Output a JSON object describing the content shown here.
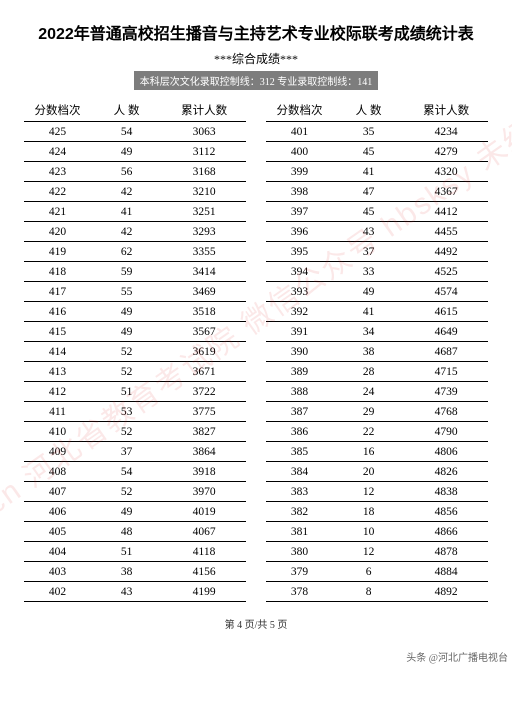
{
  "title": "2022年普通高校招生播音与主持艺术专业校际联考成绩统计表",
  "subtitle": "***综合成绩***",
  "scoreline": "本科层次文化录取控制线：312 专业录取控制线：141",
  "headers": {
    "col1": "分数档次",
    "col2": "人 数",
    "col3": "累计人数"
  },
  "left_rows": [
    {
      "s": "425",
      "c": "54",
      "t": "3063"
    },
    {
      "s": "424",
      "c": "49",
      "t": "3112"
    },
    {
      "s": "423",
      "c": "56",
      "t": "3168"
    },
    {
      "s": "422",
      "c": "42",
      "t": "3210"
    },
    {
      "s": "421",
      "c": "41",
      "t": "3251"
    },
    {
      "s": "420",
      "c": "42",
      "t": "3293"
    },
    {
      "s": "419",
      "c": "62",
      "t": "3355"
    },
    {
      "s": "418",
      "c": "59",
      "t": "3414"
    },
    {
      "s": "417",
      "c": "55",
      "t": "3469"
    },
    {
      "s": "416",
      "c": "49",
      "t": "3518"
    },
    {
      "s": "415",
      "c": "49",
      "t": "3567"
    },
    {
      "s": "414",
      "c": "52",
      "t": "3619"
    },
    {
      "s": "413",
      "c": "52",
      "t": "3671"
    },
    {
      "s": "412",
      "c": "51",
      "t": "3722"
    },
    {
      "s": "411",
      "c": "53",
      "t": "3775"
    },
    {
      "s": "410",
      "c": "52",
      "t": "3827"
    },
    {
      "s": "409",
      "c": "37",
      "t": "3864"
    },
    {
      "s": "408",
      "c": "54",
      "t": "3918"
    },
    {
      "s": "407",
      "c": "52",
      "t": "3970"
    },
    {
      "s": "406",
      "c": "49",
      "t": "4019"
    },
    {
      "s": "405",
      "c": "48",
      "t": "4067"
    },
    {
      "s": "404",
      "c": "51",
      "t": "4118"
    },
    {
      "s": "403",
      "c": "38",
      "t": "4156"
    },
    {
      "s": "402",
      "c": "43",
      "t": "4199"
    }
  ],
  "right_rows": [
    {
      "s": "401",
      "c": "35",
      "t": "4234"
    },
    {
      "s": "400",
      "c": "45",
      "t": "4279"
    },
    {
      "s": "399",
      "c": "41",
      "t": "4320"
    },
    {
      "s": "398",
      "c": "47",
      "t": "4367"
    },
    {
      "s": "397",
      "c": "45",
      "t": "4412"
    },
    {
      "s": "396",
      "c": "43",
      "t": "4455"
    },
    {
      "s": "395",
      "c": "37",
      "t": "4492"
    },
    {
      "s": "394",
      "c": "33",
      "t": "4525"
    },
    {
      "s": "393",
      "c": "49",
      "t": "4574"
    },
    {
      "s": "392",
      "c": "41",
      "t": "4615"
    },
    {
      "s": "391",
      "c": "34",
      "t": "4649"
    },
    {
      "s": "390",
      "c": "38",
      "t": "4687"
    },
    {
      "s": "389",
      "c": "28",
      "t": "4715"
    },
    {
      "s": "388",
      "c": "24",
      "t": "4739"
    },
    {
      "s": "387",
      "c": "29",
      "t": "4768"
    },
    {
      "s": "386",
      "c": "22",
      "t": "4790"
    },
    {
      "s": "385",
      "c": "16",
      "t": "4806"
    },
    {
      "s": "384",
      "c": "20",
      "t": "4826"
    },
    {
      "s": "383",
      "c": "12",
      "t": "4838"
    },
    {
      "s": "382",
      "c": "18",
      "t": "4856"
    },
    {
      "s": "381",
      "c": "10",
      "t": "4866"
    },
    {
      "s": "380",
      "c": "12",
      "t": "4878"
    },
    {
      "s": "379",
      "c": "6",
      "t": "4884"
    },
    {
      "s": "378",
      "c": "8",
      "t": "4892"
    }
  ],
  "page_info": "第 4 页/共 5 页",
  "source": "头条 @河北广播电视台",
  "watermark_text": "www.hebeea.edu.cn\n河北省教育考试院\n微信公众号 hbsksy\n未经授权严禁转载使用",
  "colors": {
    "text": "#000000",
    "scoreline_bg": "#7d7d7d",
    "scoreline_text": "#ffffff",
    "watermark": "rgba(220,30,30,0.10)",
    "background": "#ffffff"
  }
}
